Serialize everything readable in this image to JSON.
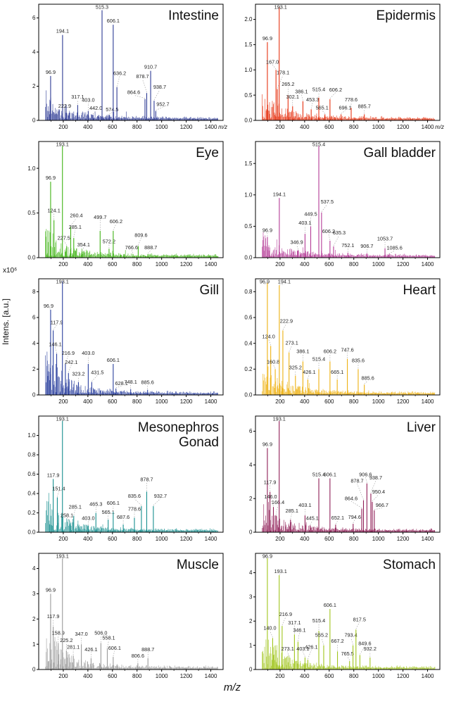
{
  "figure": {
    "ylabel": "Intens. [a.u.]",
    "y_multiplier": "x10⁶",
    "xlabel": "m/z"
  },
  "chart_data": {
    "type": "line",
    "variant": "mass-spectrum-sticks",
    "layout": "5x2-grid",
    "x_axis": {
      "label": "m/z",
      "range": [
        0,
        1500
      ],
      "ticks": [
        200,
        400,
        600,
        800,
        1000,
        1200,
        1400
      ]
    },
    "y_units": "x10⁶ a.u.",
    "panels": [
      {
        "title": "Intestine",
        "color": "#2d3a94",
        "ylim": [
          0,
          6.8
        ],
        "yticks": [
          0,
          2,
          4,
          6
        ],
        "ytick_decimals": 0,
        "show_inline_xunit": true,
        "noise": 0.28,
        "peaks": [
          [
            96.9,
            2.6,
            0,
            0
          ],
          [
            194.1,
            5.0,
            0,
            0
          ],
          [
            222.9,
            0.45,
            -2,
            -4
          ],
          [
            317.1,
            0.9,
            0,
            -6
          ],
          [
            403.0,
            0.55,
            0,
            -10
          ],
          [
            442.0,
            0.32,
            4,
            -4
          ],
          [
            515.3,
            6.45,
            0,
            0
          ],
          [
            574.5,
            0.32,
            4,
            -2
          ],
          [
            606.1,
            5.6,
            0,
            0
          ],
          [
            636.2,
            1.95,
            4,
            -14
          ],
          [
            864.6,
            1.25,
            -16,
            -4
          ],
          [
            878.7,
            1.6,
            -6,
            -18
          ],
          [
            910.7,
            2.9,
            0,
            0
          ],
          [
            938.7,
            1.15,
            8,
            -14
          ],
          [
            952.7,
            0.55,
            10,
            -4
          ]
        ]
      },
      {
        "title": "Epidermis",
        "color": "#e63312",
        "ylim": [
          0,
          2.3
        ],
        "yticks": [
          0,
          0.5,
          1,
          1.5,
          2
        ],
        "ytick_decimals": 1,
        "show_inline_xunit": true,
        "noise": 0.3,
        "peaks": [
          [
            96.9,
            1.55,
            0,
            0
          ],
          [
            167.0,
            1.0,
            -5,
            -6
          ],
          [
            178.1,
            0.62,
            8,
            -18
          ],
          [
            193.1,
            2.25,
            2,
            0
          ],
          [
            265.2,
            0.5,
            0,
            -10
          ],
          [
            302.1,
            0.28,
            0,
            -8
          ],
          [
            386.1,
            0.38,
            -2,
            -8
          ],
          [
            453.3,
            0.22,
            2,
            -8
          ],
          [
            515.4,
            0.45,
            0,
            -6
          ],
          [
            565.1,
            0.12,
            -4,
            -4
          ],
          [
            606.2,
            0.42,
            8,
            -8
          ],
          [
            696.1,
            0.12,
            6,
            -4
          ],
          [
            778.6,
            0.25,
            0,
            -6
          ],
          [
            885.7,
            0.12,
            0,
            -6
          ]
        ]
      },
      {
        "title": "Eye",
        "color": "#3fb314",
        "ylim": [
          0,
          1.3
        ],
        "yticks": [
          0,
          0.5,
          1
        ],
        "ytick_decimals": 1,
        "show_inline_xunit": false,
        "noise": 0.25,
        "peaks": [
          [
            96.9,
            0.85,
            0,
            0
          ],
          [
            124.1,
            0.42,
            0,
            -8
          ],
          [
            193.1,
            1.25,
            0,
            0
          ],
          [
            227.5,
            0.13,
            -4,
            -6
          ],
          [
            260.4,
            0.35,
            8,
            -10
          ],
          [
            285.1,
            0.22,
            2,
            -10
          ],
          [
            354.1,
            0.07,
            2,
            -4
          ],
          [
            499.7,
            0.3,
            0,
            -14
          ],
          [
            572.2,
            0.1,
            0,
            -5
          ],
          [
            606.2,
            0.3,
            4,
            -8
          ],
          [
            766.6,
            0.04,
            -2,
            -4
          ],
          [
            809.6,
            0.13,
            4,
            -10
          ],
          [
            888.7,
            0.04,
            4,
            -4
          ]
        ]
      },
      {
        "title": "Gall bladder",
        "color": "#b43a96",
        "ylim": [
          0,
          1.85
        ],
        "yticks": [
          0,
          0.5,
          1,
          1.5
        ],
        "ytick_decimals": 1,
        "show_inline_xunit": false,
        "noise": 0.18,
        "peaks": [
          [
            96.9,
            0.33,
            0,
            -4
          ],
          [
            194.1,
            0.95,
            0,
            0
          ],
          [
            346.9,
            0.12,
            -2,
            -6
          ],
          [
            403.1,
            0.38,
            0,
            -10
          ],
          [
            449.5,
            0.5,
            0,
            -12
          ],
          [
            515.4,
            1.78,
            0,
            0
          ],
          [
            537.5,
            0.72,
            8,
            -10
          ],
          [
            606.2,
            0.27,
            -2,
            -8
          ],
          [
            635.3,
            0.18,
            8,
            -14
          ],
          [
            752.1,
            0.08,
            0,
            -5
          ],
          [
            906.7,
            0.07,
            0,
            -5
          ],
          [
            1053.7,
            0.15,
            0,
            -8
          ],
          [
            1085.6,
            0.05,
            8,
            -4
          ]
        ]
      },
      {
        "title": "Gill",
        "color": "#2a3f9e",
        "ylim": [
          0,
          9
        ],
        "yticks": [
          0,
          2,
          4,
          6,
          8
        ],
        "ytick_decimals": 0,
        "show_inline_xunit": false,
        "noise": 0.45,
        "peaks": [
          [
            96.9,
            6.6,
            -3,
            0
          ],
          [
            117.9,
            5.0,
            5,
            -6
          ],
          [
            146.1,
            3.2,
            -2,
            -8
          ],
          [
            193.1,
            8.8,
            0,
            0
          ],
          [
            216.9,
            2.4,
            4,
            -10
          ],
          [
            242.1,
            1.7,
            4,
            -10
          ],
          [
            323.2,
            1.0,
            0,
            -6
          ],
          [
            403.0,
            2.4,
            0,
            -10
          ],
          [
            431.5,
            1.0,
            8,
            -8
          ],
          [
            606.1,
            2.4,
            0,
            0
          ],
          [
            628.1,
            0.5,
            8,
            -2
          ],
          [
            748.1,
            0.45,
            0,
            -5
          ],
          [
            885.6,
            0.4,
            0,
            -5
          ]
        ]
      },
      {
        "title": "Heart",
        "color": "#eeb111",
        "ylim": [
          0,
          0.9
        ],
        "yticks": [
          0,
          0.2,
          0.4,
          0.6,
          0.8
        ],
        "ytick_decimals": 1,
        "show_inline_xunit": false,
        "noise": 0.35,
        "peaks": [
          [
            96.9,
            0.87,
            -4,
            0
          ],
          [
            124.0,
            0.38,
            -3,
            -8
          ],
          [
            160.8,
            0.2,
            -3,
            -5
          ],
          [
            194.1,
            0.85,
            7,
            0
          ],
          [
            222.9,
            0.5,
            5,
            -8
          ],
          [
            273.1,
            0.33,
            4,
            -8
          ],
          [
            325.2,
            0.15,
            0,
            -6
          ],
          [
            386.1,
            0.26,
            0,
            -9
          ],
          [
            426.1,
            0.12,
            2,
            -5
          ],
          [
            515.4,
            0.2,
            0,
            -9
          ],
          [
            606.2,
            0.26,
            0,
            -9
          ],
          [
            665.1,
            0.12,
            0,
            -5
          ],
          [
            747.6,
            0.28,
            0,
            -7
          ],
          [
            835.6,
            0.2,
            0,
            -7
          ],
          [
            885.6,
            0.08,
            5,
            -4
          ]
        ]
      },
      {
        "title": "Mesonephros\nGonad",
        "color": "#178f8f",
        "ylim": [
          0,
          1.2
        ],
        "yticks": [
          0,
          0.2,
          0.4,
          0.6,
          0.8,
          1
        ],
        "ytick_decimals": 1,
        "show_inline_xunit": false,
        "noise": 0.35,
        "peaks": [
          [
            117.9,
            0.55,
            0,
            0
          ],
          [
            151.4,
            0.36,
            2,
            -7
          ],
          [
            193.1,
            1.15,
            0,
            0
          ],
          [
            258.1,
            0.1,
            -5,
            -5
          ],
          [
            285.1,
            0.17,
            2,
            -7
          ],
          [
            403.0,
            0.07,
            0,
            -5
          ],
          [
            465.3,
            0.2,
            0,
            -7
          ],
          [
            565.1,
            0.13,
            0,
            -5
          ],
          [
            606.1,
            0.21,
            0,
            -7
          ],
          [
            687.6,
            0.08,
            0,
            -5
          ],
          [
            778.6,
            0.15,
            0,
            -7
          ],
          [
            835.6,
            0.27,
            -10,
            -9
          ],
          [
            878.7,
            0.42,
            0,
            -12
          ],
          [
            932.7,
            0.27,
            10,
            -9
          ]
        ]
      },
      {
        "title": "Liver",
        "color": "#8f1d56",
        "ylim": [
          0,
          6.9
        ],
        "yticks": [
          0,
          2,
          4,
          6
        ],
        "ytick_decimals": 0,
        "show_inline_xunit": false,
        "noise": 0.3,
        "peaks": [
          [
            96.9,
            5.0,
            0,
            0
          ],
          [
            117.9,
            2.4,
            0,
            -8
          ],
          [
            146.0,
            1.5,
            -4,
            -9
          ],
          [
            166.4,
            1.0,
            3,
            -13
          ],
          [
            193.1,
            6.6,
            0,
            0
          ],
          [
            285.1,
            0.75,
            2,
            -7
          ],
          [
            403.1,
            1.0,
            0,
            -9
          ],
          [
            445.1,
            0.4,
            3,
            -5
          ],
          [
            515.4,
            3.2,
            0,
            0
          ],
          [
            606.1,
            3.2,
            0,
            0
          ],
          [
            652.1,
            0.45,
            3,
            -4
          ],
          [
            794.6,
            0.5,
            2,
            -4
          ],
          [
            864.6,
            1.4,
            -15,
            -9
          ],
          [
            878.7,
            1.9,
            -9,
            -22
          ],
          [
            906.6,
            2.9,
            -2,
            -7
          ],
          [
            938.7,
            2.3,
            7,
            -17
          ],
          [
            950.4,
            1.8,
            9,
            -9
          ],
          [
            966.7,
            1.3,
            11,
            -2
          ]
        ]
      },
      {
        "title": "Muscle",
        "color": "#9b9b9b",
        "ylim": [
          0,
          4.6
        ],
        "yticks": [
          0,
          1,
          2,
          3,
          4
        ],
        "ytick_decimals": 0,
        "show_inline_xunit": false,
        "noise": 0.4,
        "peaks": [
          [
            96.9,
            3.0,
            0,
            0
          ],
          [
            117.9,
            1.7,
            0,
            -9
          ],
          [
            158.9,
            1.05,
            0,
            -9
          ],
          [
            193.1,
            4.4,
            0,
            0
          ],
          [
            225.2,
            0.75,
            0,
            -9
          ],
          [
            281.1,
            0.55,
            0,
            -7
          ],
          [
            347.0,
            1.0,
            0,
            -9
          ],
          [
            426.1,
            0.45,
            0,
            -7
          ],
          [
            506.0,
            1.05,
            0,
            -9
          ],
          [
            558.1,
            0.85,
            2,
            -9
          ],
          [
            606.1,
            0.5,
            2,
            -7
          ],
          [
            806.6,
            0.25,
            0,
            -5
          ],
          [
            888.7,
            0.45,
            0,
            -7
          ]
        ]
      },
      {
        "title": "Stomach",
        "color": "#a0c51c",
        "ylim": [
          0,
          4.8
        ],
        "yticks": [
          0,
          1,
          2,
          3,
          4
        ],
        "ytick_decimals": 0,
        "show_inline_xunit": false,
        "noise": 0.38,
        "peaks": [
          [
            96.9,
            4.6,
            0,
            0
          ],
          [
            140.0,
            1.3,
            -4,
            -9
          ],
          [
            193.1,
            3.9,
            2,
            0
          ],
          [
            216.9,
            1.8,
            5,
            -11
          ],
          [
            273.1,
            0.5,
            -2,
            -7
          ],
          [
            317.1,
            1.45,
            0,
            -11
          ],
          [
            346.1,
            1.15,
            2,
            -11
          ],
          [
            403.1,
            0.5,
            -3,
            -7
          ],
          [
            426.1,
            0.4,
            5,
            -13
          ],
          [
            515.4,
            1.6,
            0,
            -9
          ],
          [
            555.2,
            1.0,
            -3,
            -9
          ],
          [
            606.1,
            2.5,
            0,
            0
          ],
          [
            667.2,
            0.75,
            0,
            -9
          ],
          [
            765.5,
            0.35,
            -3,
            -5
          ],
          [
            793.4,
            1.0,
            -3,
            -9
          ],
          [
            817.5,
            1.65,
            5,
            -9
          ],
          [
            849.6,
            0.6,
            7,
            -11
          ],
          [
            932.2,
            0.5,
            0,
            -7
          ]
        ]
      }
    ]
  }
}
